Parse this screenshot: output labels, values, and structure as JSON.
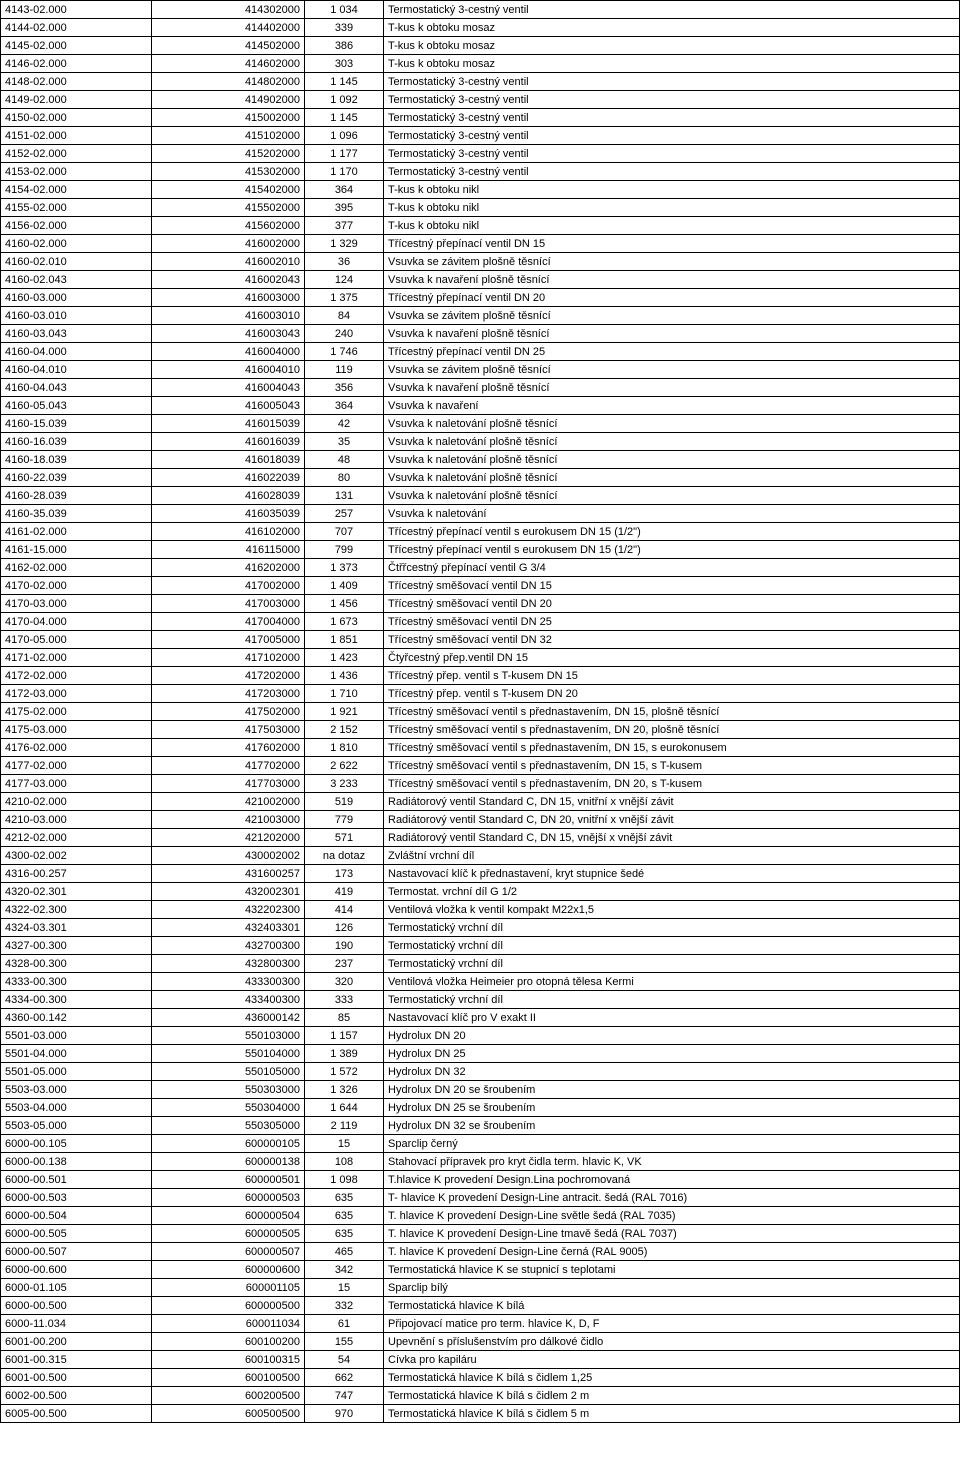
{
  "table": {
    "column_widths": [
      "142px",
      "144px",
      "70px",
      "auto"
    ],
    "column_align": [
      "left",
      "right",
      "center",
      "left"
    ],
    "font_size": 11,
    "border_color": "#000000",
    "background_color": "#ffffff",
    "text_color": "#000000",
    "rows": [
      [
        "4143-02.000",
        "414302000",
        "1 034",
        "Termostatický 3-cestný ventil"
      ],
      [
        "4144-02.000",
        "414402000",
        "339",
        "T-kus k obtoku mosaz"
      ],
      [
        "4145-02.000",
        "414502000",
        "386",
        "T-kus k obtoku mosaz"
      ],
      [
        "4146-02.000",
        "414602000",
        "303",
        "T-kus k obtoku mosaz"
      ],
      [
        "4148-02.000",
        "414802000",
        "1 145",
        "Termostatický 3-cestný ventil"
      ],
      [
        "4149-02.000",
        "414902000",
        "1 092",
        "Termostatický 3-cestný ventil"
      ],
      [
        "4150-02.000",
        "415002000",
        "1 145",
        "Termostatický 3-cestný ventil"
      ],
      [
        "4151-02.000",
        "415102000",
        "1 096",
        "Termostatický 3-cestný ventil"
      ],
      [
        "4152-02.000",
        "415202000",
        "1 177",
        "Termostatický 3-cestný ventil"
      ],
      [
        "4153-02.000",
        "415302000",
        "1 170",
        "Termostatický 3-cestný ventil"
      ],
      [
        "4154-02.000",
        "415402000",
        "364",
        "T-kus k obtoku nikl"
      ],
      [
        "4155-02.000",
        "415502000",
        "395",
        "T-kus k obtoku nikl"
      ],
      [
        "4156-02.000",
        "415602000",
        "377",
        "T-kus k obtoku nikl"
      ],
      [
        "4160-02.000",
        "416002000",
        "1 329",
        "Třícestný přepínací ventil DN 15"
      ],
      [
        "4160-02.010",
        "416002010",
        "36",
        "Vsuvka se závitem plošně těsnící"
      ],
      [
        "4160-02.043",
        "416002043",
        "124",
        "Vsuvka k navaření plošně těsnící"
      ],
      [
        "4160-03.000",
        "416003000",
        "1 375",
        "Třícestný přepínací ventil DN 20"
      ],
      [
        "4160-03.010",
        "416003010",
        "84",
        "Vsuvka se závitem plošně těsnící"
      ],
      [
        "4160-03.043",
        "416003043",
        "240",
        "Vsuvka k navaření plošně těsnící"
      ],
      [
        "4160-04.000",
        "416004000",
        "1 746",
        "Třícestný přepínací ventil DN 25"
      ],
      [
        "4160-04.010",
        "416004010",
        "119",
        "Vsuvka se závitem plošně těsnící"
      ],
      [
        "4160-04.043",
        "416004043",
        "356",
        "Vsuvka k navaření plošně těsnící"
      ],
      [
        "4160-05.043",
        "416005043",
        "364",
        "Vsuvka k navaření"
      ],
      [
        "4160-15.039",
        "416015039",
        "42",
        "Vsuvka k naletování plošně těsnící"
      ],
      [
        "4160-16.039",
        "416016039",
        "35",
        "Vsuvka k naletování plošně těsnící"
      ],
      [
        "4160-18.039",
        "416018039",
        "48",
        "Vsuvka k naletování plošně těsnící"
      ],
      [
        "4160-22.039",
        "416022039",
        "80",
        "Vsuvka k naletování plošně těsnící"
      ],
      [
        "4160-28.039",
        "416028039",
        "131",
        "Vsuvka k naletování plošně těsnící"
      ],
      [
        "4160-35.039",
        "416035039",
        "257",
        "Vsuvka k naletování"
      ],
      [
        "4161-02.000",
        "416102000",
        "707",
        "Třícestný přepínací ventil s eurokusem DN 15 (1/2\")"
      ],
      [
        "4161-15.000",
        "416115000",
        "799",
        "Třícestný přepínací ventil s eurokusem DN 15 (1/2\")"
      ],
      [
        "4162-02.000",
        "416202000",
        "1 373",
        "Čtřřcestný přepínací ventil G 3/4"
      ],
      [
        "4170-02.000",
        "417002000",
        "1 409",
        "Třícestný směšovací ventil DN 15"
      ],
      [
        "4170-03.000",
        "417003000",
        "1 456",
        "Třícestný směšovací ventil DN 20"
      ],
      [
        "4170-04.000",
        "417004000",
        "1 673",
        "Třícestný směšovací ventil DN 25"
      ],
      [
        "4170-05.000",
        "417005000",
        "1 851",
        "Třícestný směšovací ventil DN 32"
      ],
      [
        "4171-02.000",
        "417102000",
        "1 423",
        "Čtyřcestný přep.ventil DN 15"
      ],
      [
        "4172-02.000",
        "417202000",
        "1 436",
        "Třícestný přep. ventil s T-kusem DN 15"
      ],
      [
        "4172-03.000",
        "417203000",
        "1 710",
        "Třícestný přep. ventil s T-kusem DN 20"
      ],
      [
        "4175-02.000",
        "417502000",
        "1 921",
        "Třícestný směšovací ventil s přednastavením, DN 15, plošně těsnící"
      ],
      [
        "4175-03.000",
        "417503000",
        "2 152",
        "Třícestný směšovací ventil s přednastavením, DN 20, plošně těsnící"
      ],
      [
        "4176-02.000",
        "417602000",
        "1 810",
        "Třícestný směšovací ventil s přednastavením, DN 15, s eurokonusem"
      ],
      [
        "4177-02.000",
        "417702000",
        "2 622",
        "Třícestný směšovací ventil s přednastavením, DN 15, s T-kusem"
      ],
      [
        "4177-03.000",
        "417703000",
        "3 233",
        "Třícestný směšovací ventil s přednastavením, DN 20, s T-kusem"
      ],
      [
        "4210-02.000",
        "421002000",
        "519",
        "Radiátorový ventil Standard C, DN 15, vnitřní x vnější závit"
      ],
      [
        "4210-03.000",
        "421003000",
        "779",
        "Radiátorový ventil Standard C, DN 20, vnitřní x vnější závit"
      ],
      [
        "4212-02.000",
        "421202000",
        "571",
        "Radiátorový ventil Standard C, DN 15, vnější x vnější závit"
      ],
      [
        "4300-02.002",
        "430002002",
        "na dotaz",
        "Zvláštní vrchní díl"
      ],
      [
        "4316-00.257",
        "431600257",
        "173",
        "Nastavovací klíč k přednastavení, kryt stupnice šedé"
      ],
      [
        "4320-02.301",
        "432002301",
        "419",
        "Termostat. vrchní díl G 1/2"
      ],
      [
        "4322-02.300",
        "432202300",
        "414",
        "Ventilová vložka k ventil kompakt M22x1,5"
      ],
      [
        "4324-03.301",
        "432403301",
        "126",
        "Termostatický vrchní díl"
      ],
      [
        "4327-00.300",
        "432700300",
        "190",
        "Termostatický vrchní díl"
      ],
      [
        "4328-00.300",
        "432800300",
        "237",
        "Termostatický vrchní díl"
      ],
      [
        "4333-00.300",
        "433300300",
        "320",
        "Ventilová vložka Heimeier pro otopná tělesa Kermi"
      ],
      [
        "4334-00.300",
        "433400300",
        "333",
        "Termostatický vrchní díl"
      ],
      [
        "4360-00.142",
        "436000142",
        "85",
        "Nastavovací klíč pro V exakt II"
      ],
      [
        "5501-03.000",
        "550103000",
        "1 157",
        "Hydrolux DN 20"
      ],
      [
        "5501-04.000",
        "550104000",
        "1 389",
        "Hydrolux DN 25"
      ],
      [
        "5501-05.000",
        "550105000",
        "1 572",
        "Hydrolux DN 32"
      ],
      [
        "5503-03.000",
        "550303000",
        "1 326",
        "Hydrolux DN 20 se šroubením"
      ],
      [
        "5503-04.000",
        "550304000",
        "1 644",
        "Hydrolux DN 25 se šroubením"
      ],
      [
        "5503-05.000",
        "550305000",
        "2 119",
        "Hydrolux DN 32 se šroubením"
      ],
      [
        "6000-00.105",
        "600000105",
        "15",
        "Sparclip černý"
      ],
      [
        "6000-00.138",
        "600000138",
        "108",
        "Stahovací přípravek pro kryt čidla term. hlavic K, VK"
      ],
      [
        "6000-00.501",
        "600000501",
        "1 098",
        "T.hlavice K provedení Design.Lina pochromovaná"
      ],
      [
        "6000-00.503",
        "600000503",
        "635",
        "T- hlavice K provedení Design-Line antracit. šedá (RAL 7016)"
      ],
      [
        "6000-00.504",
        "600000504",
        "635",
        "T. hlavice K provedení Design-Line světle šedá (RAL 7035)"
      ],
      [
        "6000-00.505",
        "600000505",
        "635",
        "T. hlavice K provedení Design-Line tmavě šedá (RAL 7037)"
      ],
      [
        "6000-00.507",
        "600000507",
        "465",
        "T. hlavice K provedení Design-Line černá (RAL 9005)"
      ],
      [
        "6000-00.600",
        "600000600",
        "342",
        "Termostatická hlavice K se stupnicí s teplotami"
      ],
      [
        "6000-01.105",
        "600001105",
        "15",
        "Sparclip bílý"
      ],
      [
        "6000-00.500",
        "600000500",
        "332",
        "Termostatická hlavice K bílá"
      ],
      [
        "6000-11.034",
        "600011034",
        "61",
        "Připojovací matice pro term. hlavice K, D, F"
      ],
      [
        "6001-00.200",
        "600100200",
        "155",
        "Upevnění s příslušenstvím pro dálkové čidlo"
      ],
      [
        "6001-00.315",
        "600100315",
        "54",
        "Cívka pro kapiláru"
      ],
      [
        "6001-00.500",
        "600100500",
        "662",
        "Termostatická hlavice K bílá s čidlem 1,25"
      ],
      [
        "6002-00.500",
        "600200500",
        "747",
        "Termostatická hlavice K bílá s čidlem 2 m"
      ],
      [
        "6005-00.500",
        "600500500",
        "970",
        "Termostatická hlavice K bílá s čidlem 5 m"
      ]
    ]
  }
}
